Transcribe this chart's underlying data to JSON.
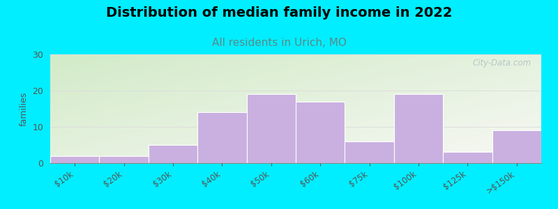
{
  "title": "Distribution of median family income in 2022",
  "subtitle": "All residents in Urich, MO",
  "categories": [
    "$10k",
    "$20k",
    "$30k",
    "$40k",
    "$50k",
    "$60k",
    "$75k",
    "$100k",
    "$125k",
    ">$150k"
  ],
  "values": [
    2,
    2,
    5,
    14,
    19,
    17,
    6,
    19,
    3,
    9
  ],
  "bar_color": "#c9b0e0",
  "bar_edgecolor": "#ffffff",
  "ylabel": "families",
  "ylim": [
    0,
    30
  ],
  "yticks": [
    0,
    10,
    20,
    30
  ],
  "background_outer": "#00eeff",
  "title_fontsize": 14,
  "subtitle_fontsize": 11,
  "subtitle_color": "#5a8a8a",
  "watermark_text": "City-Data.com",
  "grid_color": "#dddddd",
  "tick_label_color": "#555555"
}
